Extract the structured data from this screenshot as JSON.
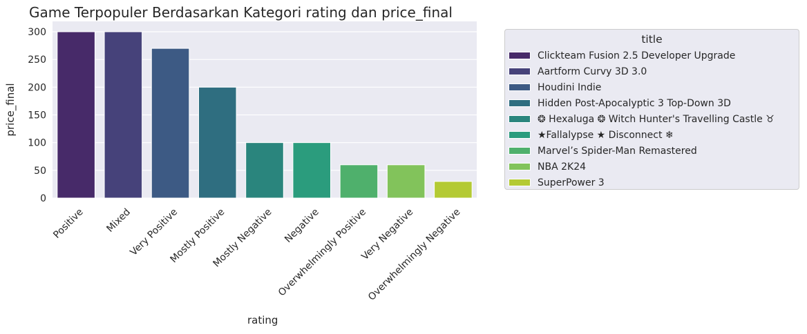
{
  "chart_data": {
    "type": "bar",
    "title": "Game Terpopuler Berdasarkan Kategori rating dan price_final",
    "xlabel": "rating",
    "ylabel": "price_final",
    "ylim": [
      0,
      300
    ],
    "yticks": [
      0,
      50,
      100,
      150,
      200,
      250,
      300
    ],
    "grid": true,
    "legend_position": "outside-right",
    "legend_title": "title",
    "categories": [
      "Positive",
      "Mixed",
      "Very Positive",
      "Mostly Positive",
      "Mostly Negative",
      "Negative",
      "Overwhelmingly Positive",
      "Very Negative",
      "Overwhelmingly Negative"
    ],
    "values": [
      300,
      300,
      270,
      200,
      100,
      100,
      60,
      60,
      30
    ],
    "series": [
      {
        "name": "Clickteam Fusion 2.5 Developer Upgrade",
        "color": "#472a69"
      },
      {
        "name": "Aartform Curvy 3D 3.0",
        "color": "#46427a"
      },
      {
        "name": "Houdini Indie",
        "color": "#3d5a84"
      },
      {
        "name": "Hidden  Post-Apocalyptic 3  Top-Down 3D",
        "color": "#2f6e80"
      },
      {
        "name": "❂ Hexaluga ❂ Witch Hunter's Travelling Castle ♉",
        "color": "#2a857d"
      },
      {
        "name": "★Fallalypse ★ Disconnect ❄",
        "color": "#2b9c7d"
      },
      {
        "name": "Marvel’s Spider-Man Remastered",
        "color": "#4fb06c"
      },
      {
        "name": "NBA 2K24",
        "color": "#82c35b"
      },
      {
        "name": "SuperPower 3",
        "color": "#b4ca34"
      }
    ]
  }
}
